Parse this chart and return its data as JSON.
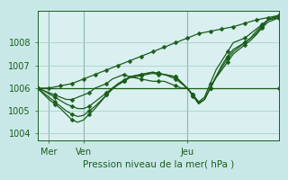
{
  "bg_color": "#c8e8e8",
  "plot_bg_color": "#daf0f0",
  "grid_color": "#a0c8c8",
  "line_color": "#1a5c1a",
  "xlabel": "Pression niveau de la mer( hPa )",
  "ylim": [
    1003.7,
    1009.4
  ],
  "yticks": [
    1004,
    1005,
    1006,
    1007,
    1008
  ],
  "xlim": [
    0,
    42
  ],
  "xtick_positions": [
    2,
    8,
    26
  ],
  "xtick_labels": [
    "Mer",
    "Ven",
    "Jeu"
  ],
  "vlines": [
    2,
    8,
    26
  ],
  "figsize": [
    3.2,
    2.0
  ],
  "dpi": 100,
  "series": [
    {
      "x": [
        0,
        2,
        4,
        6,
        8,
        10,
        12,
        14,
        16,
        18,
        20,
        22,
        24,
        26,
        28,
        30,
        32,
        34,
        36,
        38,
        40,
        42
      ],
      "y": [
        1006.0,
        1006.0,
        1006.1,
        1006.2,
        1006.4,
        1006.6,
        1006.8,
        1007.0,
        1007.2,
        1007.4,
        1007.6,
        1007.8,
        1008.0,
        1008.2,
        1008.4,
        1008.5,
        1008.6,
        1008.7,
        1008.85,
        1009.0,
        1009.1,
        1009.2
      ]
    },
    {
      "x": [
        0,
        1,
        2,
        3,
        4,
        5,
        6,
        7,
        8,
        9,
        10,
        11,
        12,
        13,
        14,
        15,
        16,
        17,
        18,
        19,
        20,
        21,
        22,
        23,
        24,
        25,
        26,
        27,
        28,
        29,
        30,
        31,
        32,
        33,
        34,
        35,
        36,
        37,
        38,
        39,
        40,
        41,
        42
      ],
      "y": [
        1006.0,
        1005.9,
        1005.8,
        1005.7,
        1005.6,
        1005.5,
        1005.5,
        1005.6,
        1005.7,
        1005.8,
        1006.0,
        1006.1,
        1006.2,
        1006.4,
        1006.5,
        1006.6,
        1006.5,
        1006.45,
        1006.4,
        1006.35,
        1006.3,
        1006.3,
        1006.3,
        1006.2,
        1006.1,
        1006.0,
        1006.0,
        1005.7,
        1005.4,
        1005.6,
        1006.2,
        1006.8,
        1007.2,
        1007.6,
        1008.0,
        1008.1,
        1008.2,
        1008.4,
        1008.6,
        1008.8,
        1009.0,
        1009.1,
        1009.2
      ]
    },
    {
      "x": [
        0,
        1,
        2,
        3,
        4,
        5,
        6,
        7,
        8,
        9,
        10,
        11,
        12,
        13,
        14,
        15,
        16,
        17,
        18,
        19,
        20,
        21,
        22,
        23,
        24,
        25,
        26,
        27,
        28,
        29,
        30,
        31,
        32,
        33,
        34,
        35,
        36,
        37,
        38,
        39,
        40,
        41,
        42
      ],
      "y": [
        1006.0,
        1005.75,
        1005.5,
        1005.3,
        1005.1,
        1004.85,
        1004.6,
        1004.5,
        1004.6,
        1004.85,
        1005.1,
        1005.4,
        1005.7,
        1006.0,
        1006.2,
        1006.35,
        1006.5,
        1006.55,
        1006.6,
        1006.65,
        1006.7,
        1006.65,
        1006.6,
        1006.55,
        1006.5,
        1006.25,
        1006.0,
        1005.7,
        1005.35,
        1005.5,
        1006.0,
        1006.5,
        1007.0,
        1007.4,
        1007.7,
        1007.85,
        1008.0,
        1008.2,
        1008.4,
        1008.7,
        1009.0,
        1009.1,
        1009.15
      ]
    },
    {
      "x": [
        0,
        1,
        2,
        3,
        4,
        5,
        6,
        7,
        8,
        9,
        10,
        11,
        12,
        13,
        14,
        15,
        16,
        17,
        18,
        19,
        20,
        21,
        22,
        23,
        24,
        25,
        26,
        27,
        28,
        29,
        30,
        31,
        32,
        33,
        34,
        35,
        36,
        37,
        38,
        39,
        40,
        41,
        42
      ],
      "y": [
        1006.0,
        1005.8,
        1005.6,
        1005.4,
        1005.2,
        1005.0,
        1004.85,
        1004.75,
        1004.8,
        1005.0,
        1005.2,
        1005.45,
        1005.7,
        1005.95,
        1006.15,
        1006.3,
        1006.5,
        1006.55,
        1006.6,
        1006.65,
        1006.7,
        1006.65,
        1006.6,
        1006.5,
        1006.4,
        1006.2,
        1006.0,
        1005.65,
        1005.3,
        1005.5,
        1006.0,
        1006.5,
        1006.9,
        1007.3,
        1007.6,
        1007.8,
        1008.0,
        1008.2,
        1008.5,
        1008.75,
        1009.0,
        1009.05,
        1009.1
      ]
    },
    {
      "x": [
        0,
        1,
        2,
        3,
        4,
        5,
        6,
        7,
        8,
        9,
        10,
        11,
        12,
        13,
        14,
        15,
        16,
        17,
        18,
        19,
        20,
        21,
        22,
        23,
        24,
        25,
        26,
        27,
        28,
        29,
        30,
        31,
        32,
        33,
        34,
        35,
        36,
        37,
        38,
        39,
        40,
        41,
        42
      ],
      "y": [
        1006.0,
        1005.9,
        1005.75,
        1005.6,
        1005.45,
        1005.3,
        1005.2,
        1005.1,
        1005.1,
        1005.2,
        1005.4,
        1005.6,
        1005.8,
        1006.0,
        1006.15,
        1006.3,
        1006.45,
        1006.5,
        1006.55,
        1006.6,
        1006.65,
        1006.6,
        1006.6,
        1006.55,
        1006.5,
        1006.25,
        1006.0,
        1005.7,
        1005.35,
        1005.5,
        1006.0,
        1006.45,
        1006.8,
        1007.15,
        1007.5,
        1007.7,
        1007.9,
        1008.1,
        1008.35,
        1008.65,
        1008.9,
        1009.0,
        1009.1
      ]
    },
    {
      "x": [
        0,
        42
      ],
      "y": [
        1006.0,
        1006.0
      ]
    }
  ],
  "marker_size": 2.5,
  "line_width": 0.9
}
